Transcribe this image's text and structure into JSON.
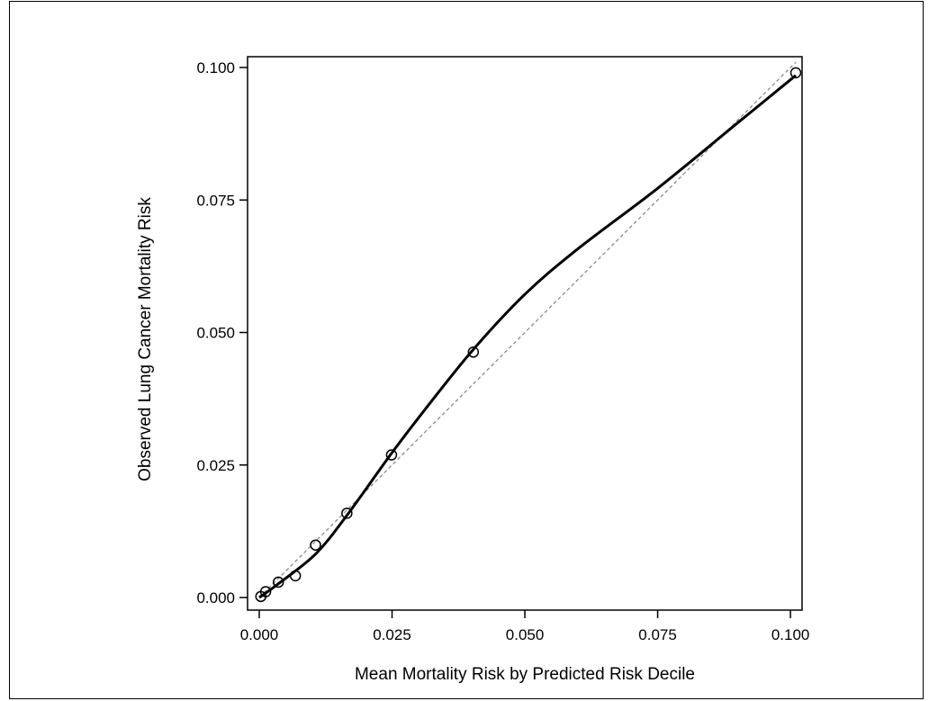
{
  "chart_data": {
    "type": "scatter",
    "title": "",
    "xlabel": "Mean Mortality Risk by Predicted Risk Decile",
    "ylabel": "Observed Lung Cancer Mortality Risk",
    "xlim": [
      0.0,
      0.101
    ],
    "ylim": [
      0.0,
      0.1
    ],
    "grid": false,
    "x_ticks": [
      "0.000",
      "0.025",
      "0.050",
      "0.075",
      "0.100"
    ],
    "y_ticks": [
      "0.000",
      "0.025",
      "0.050",
      "0.075",
      "0.100"
    ],
    "series": [
      {
        "kind": "points",
        "marker": "open-circle",
        "x": [
          0.0003,
          0.0012,
          0.0036,
          0.0068,
          0.0106,
          0.0165,
          0.0249,
          0.0403,
          0.101
        ],
        "y": [
          0.0002,
          0.0011,
          0.0029,
          0.0041,
          0.0099,
          0.0159,
          0.0269,
          0.0463,
          0.099
        ]
      },
      {
        "kind": "smoothed-curve",
        "style": "solid",
        "color": "#000000",
        "x": [
          0.0,
          0.0036,
          0.0106,
          0.0165,
          0.0249,
          0.032,
          0.0403,
          0.05,
          0.06,
          0.075,
          0.09,
          0.101
        ],
        "y": [
          0.0,
          0.0026,
          0.0082,
          0.0155,
          0.0272,
          0.0365,
          0.0468,
          0.0572,
          0.0658,
          0.0772,
          0.0895,
          0.0985
        ]
      },
      {
        "kind": "reference-line",
        "style": "dashed",
        "color": "#8a8a8a",
        "x": [
          0.0,
          0.101
        ],
        "y": [
          0.0,
          0.101
        ]
      }
    ]
  }
}
